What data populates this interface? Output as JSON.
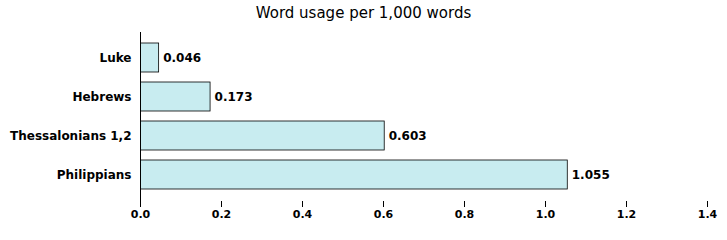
{
  "chart_data": {
    "type": "bar",
    "orientation": "horizontal",
    "title": "Word usage per 1,000 words",
    "categories": [
      "Philippians",
      "Thessalonians 1,2",
      "Hebrews",
      "Luke"
    ],
    "values": [
      1.055,
      0.603,
      0.173,
      0.046
    ],
    "color": "#c8ecf0",
    "xlim": [
      0,
      1.4
    ],
    "xticks": [
      {
        "value": 0.0,
        "label": "0.0"
      },
      0.2,
      0.4,
      0.6,
      0.8,
      {
        "value": 1.0,
        "label": "1.0"
      },
      1.2,
      1.4
    ],
    "data_labels": true
  }
}
